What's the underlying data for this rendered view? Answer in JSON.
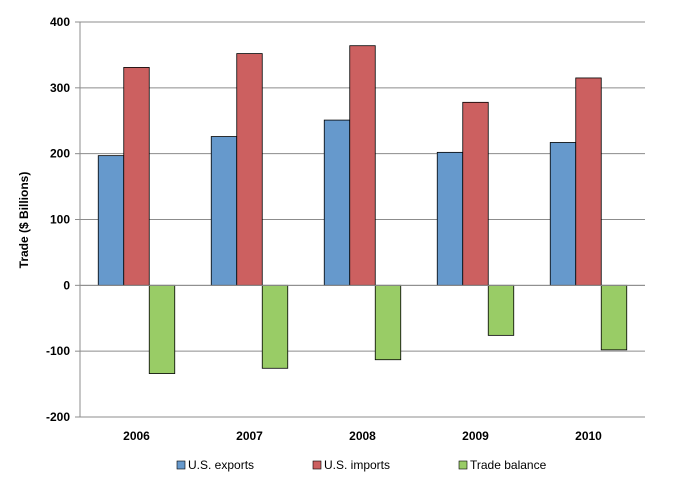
{
  "chart_data": {
    "type": "bar",
    "categories": [
      "2006",
      "2007",
      "2008",
      "2009",
      "2010"
    ],
    "series": [
      {
        "name": "U.S. exports",
        "color": "#6699cc",
        "values": [
          197,
          226,
          251,
          202,
          217
        ]
      },
      {
        "name": "U.S. imports",
        "color": "#cc6060",
        "values": [
          331,
          352,
          364,
          278,
          315
        ]
      },
      {
        "name": "Trade balance",
        "color": "#99cc66",
        "values": [
          -134,
          -126,
          -113,
          -76,
          -98
        ]
      }
    ],
    "ylabel": "Trade ($ Billions)",
    "xlabel": "",
    "ylim": [
      -200,
      400
    ],
    "yticks": [
      "400",
      "300",
      "200",
      "100",
      "0",
      "-100",
      "-200"
    ],
    "grid": true,
    "legend": "bottom"
  }
}
